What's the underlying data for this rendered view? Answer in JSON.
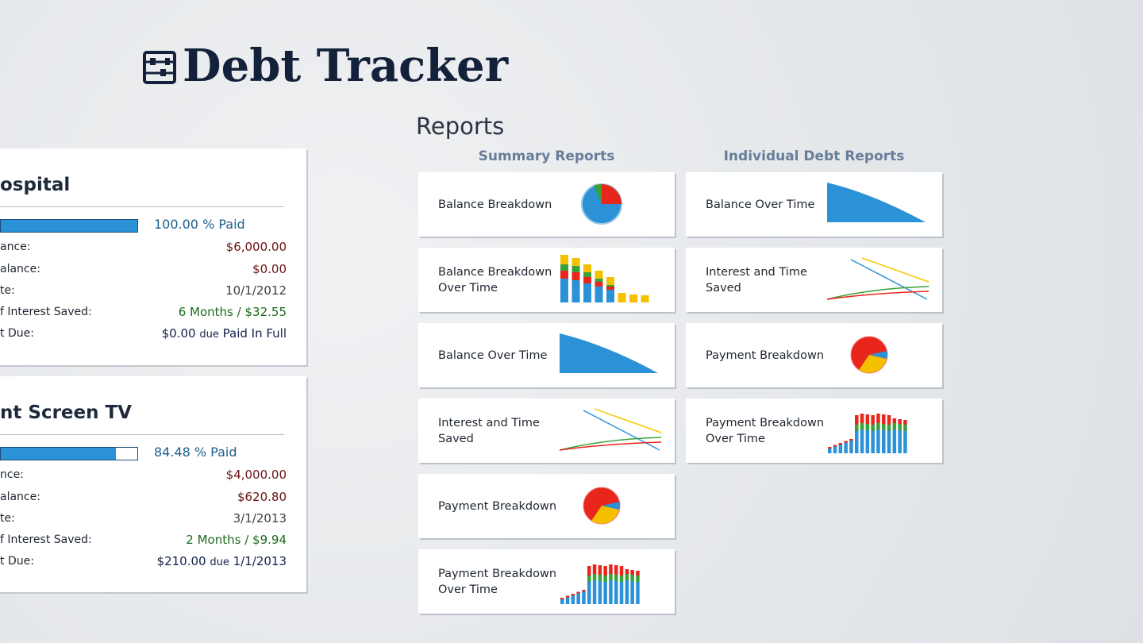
{
  "header": {
    "title": "Debt Tracker"
  },
  "debts": [
    {
      "name": "ospital",
      "percent_paid": 100,
      "percent_label": "100.00 % Paid",
      "rows": [
        {
          "label": "ance:",
          "value": [
            "$6,000.00"
          ]
        },
        {
          "label": "alance:",
          "value": [
            "$0.00"
          ]
        },
        {
          "label": "te:",
          "value": [
            "10/1/2012"
          ]
        },
        {
          "label": "f Interest Saved:",
          "value": [
            "6 Months",
            "/",
            "$32.55"
          ]
        },
        {
          "label": "t Due:",
          "value": [
            "$0.00",
            "due",
            "Paid In Full"
          ]
        }
      ]
    },
    {
      "name": "nt Screen TV",
      "percent_paid": 84.48,
      "percent_label": "84.48 % Paid",
      "rows": [
        {
          "label": "nce:",
          "value": [
            "$4,000.00"
          ]
        },
        {
          "label": "alance:",
          "value": [
            "$620.80"
          ]
        },
        {
          "label": "te:",
          "value": [
            "3/1/2013"
          ]
        },
        {
          "label": "f Interest Saved:",
          "value": [
            "2 Months",
            "/",
            "$9.94"
          ]
        },
        {
          "label": "t Due:",
          "value": [
            "$210.00",
            "due",
            "1/1/2013"
          ]
        }
      ]
    }
  ],
  "reports": {
    "title": "Reports",
    "columns": [
      {
        "heading": "Summary Reports",
        "tiles": [
          "Balance Breakdown",
          "Balance Breakdown Over Time",
          "Balance Over Time",
          "Interest and Time Saved",
          "Payment Breakdown",
          "Payment Breakdown Over Time"
        ]
      },
      {
        "heading": "Individual Debt Reports",
        "tiles": [
          "Balance Over Time",
          "Interest and Time Saved",
          "Payment Breakdown",
          "Payment Breakdown Over Time"
        ]
      }
    ]
  }
}
